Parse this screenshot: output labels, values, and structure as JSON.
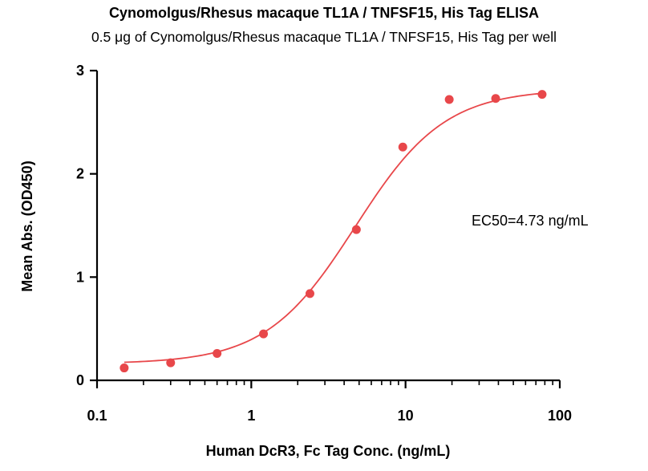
{
  "chart_data": {
    "type": "scatter",
    "title": "Cynomolgus/Rhesus macaque TL1A / TNFSF15, His Tag  ELISA",
    "subtitle": "0.5 μg of Cynomolgus/Rhesus macaque TL1A / TNFSF15, His Tag  per well",
    "xlabel": "Human DcR3, Fc Tag Conc. (ng/mL)",
    "ylabel": "Mean Abs. (OD450)",
    "x_scale": "log",
    "xlim": [
      0.1,
      100
    ],
    "ylim": [
      0,
      3
    ],
    "x_ticks": [
      0.1,
      1,
      10,
      100
    ],
    "x_tick_labels": [
      "0.1",
      "1",
      "10",
      "100"
    ],
    "y_ticks": [
      0,
      1,
      2,
      3
    ],
    "y_tick_labels": [
      "0",
      "1",
      "2",
      "3"
    ],
    "grid": false,
    "legend": "none",
    "color": "#e8474a",
    "annotation": "EC50=4.73 ng/mL",
    "series": [
      {
        "x": [
          0.15,
          0.3,
          0.6,
          1.2,
          2.4,
          4.8,
          9.6,
          19.2,
          38.4,
          76.8
        ],
        "y": [
          0.12,
          0.17,
          0.26,
          0.45,
          0.84,
          1.46,
          2.26,
          2.72,
          2.73,
          2.77
        ]
      }
    ],
    "fit": {
      "model": "4PL",
      "bottom": 0.16,
      "top": 2.82,
      "ec50": 4.73,
      "hill": 1.5
    }
  }
}
